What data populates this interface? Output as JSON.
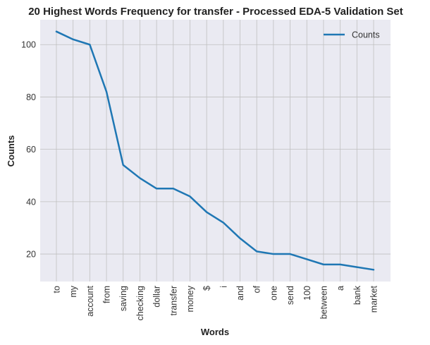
{
  "chart_data": {
    "type": "line",
    "title": "20 Highest Words Frequency for transfer - Processed EDA-5 Validation Set",
    "xlabel": "Words",
    "ylabel": "Counts",
    "categories": [
      "to",
      "my",
      "account",
      "from",
      "saving",
      "checking",
      "dollar",
      "transfer",
      "money",
      "$",
      "i",
      "and",
      "of",
      "one",
      "send",
      "100",
      "between",
      "a",
      "bank",
      "market"
    ],
    "series": [
      {
        "name": "Counts",
        "values": [
          105,
          102,
          100,
          82,
          54,
          49,
          45,
          45,
          42,
          36,
          32,
          26,
          21,
          20,
          20,
          18,
          16,
          16,
          15,
          14
        ],
        "color": "#1f77b4"
      }
    ],
    "ylim": [
      9.5,
      109.5
    ],
    "yticks": [
      20,
      40,
      60,
      80,
      100
    ],
    "grid": true,
    "legend_position": "top-right",
    "background": "#eaeaf2",
    "grid_color": "#c0c0c0"
  }
}
